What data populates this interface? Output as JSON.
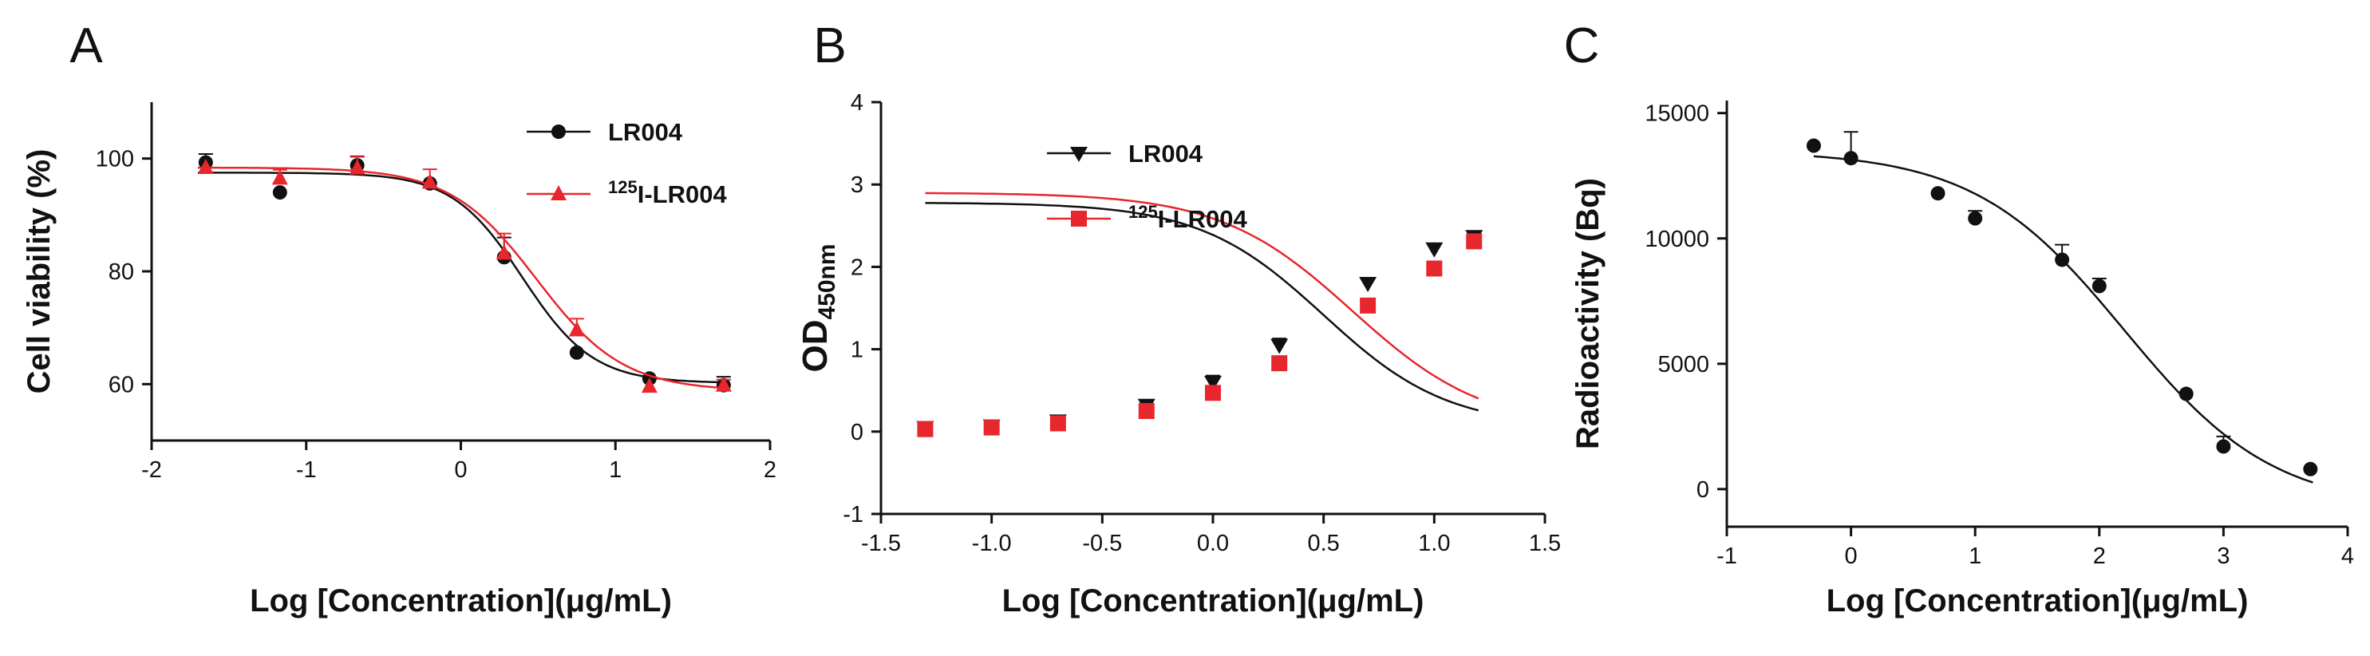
{
  "colors": {
    "black": "#111111",
    "red": "#e8262d"
  },
  "chart_data": [
    {
      "panel": "A",
      "type": "scatter",
      "xlabel": "Log [Concentration](μg/mL)",
      "ylabel": "Cell viability (%)",
      "xlim": [
        -2,
        2
      ],
      "ylim": [
        50,
        110
      ],
      "xticks": [
        -2,
        -1,
        0,
        1,
        2
      ],
      "xtick_labels": [
        "-2",
        "-1",
        "0",
        "1",
        "2"
      ],
      "yticks": [
        60,
        80,
        100
      ],
      "ytick_labels": [
        "60",
        "80",
        "100"
      ],
      "legend": "top-right",
      "series": [
        {
          "name": "LR004",
          "name_sup": "",
          "marker": "circle",
          "color": "#111111",
          "x": [
            -1.65,
            -1.17,
            -0.67,
            -0.2,
            0.28,
            0.75,
            1.22,
            1.7
          ],
          "y": [
            99.3,
            94.0,
            98.8,
            95.6,
            82.5,
            65.6,
            61.0,
            59.8
          ],
          "err": [
            1.5,
            0,
            1.6,
            0,
            3.5,
            0,
            0,
            1.5
          ],
          "fit": {
            "bottom": 60.2,
            "top": 97.5,
            "logec50": 0.4,
            "hill": 1.9
          }
        },
        {
          "name": "I-LR004",
          "name_sup": "125",
          "marker": "triangle",
          "color": "#e8262d",
          "x": [
            -1.65,
            -1.17,
            -0.67,
            -0.2,
            0.28,
            0.75,
            1.22,
            1.7
          ],
          "y": [
            98.4,
            96.5,
            98.3,
            95.8,
            83.2,
            69.6,
            59.6,
            59.8
          ],
          "err": [
            0,
            1.5,
            2.0,
            2.3,
            3.5,
            2.0,
            0,
            1.0
          ],
          "fit": {
            "bottom": 58.8,
            "top": 98.4,
            "logec50": 0.49,
            "hill": 1.55
          }
        }
      ]
    },
    {
      "panel": "B",
      "type": "scatter",
      "xlabel": "Log [Concentration](μg/mL)",
      "ylabel": "OD",
      "ylabel_sub": "450nm",
      "xlim": [
        -1.5,
        1.5
      ],
      "ylim": [
        -1,
        4
      ],
      "xticks": [
        -1.5,
        -1.0,
        -0.5,
        0.0,
        0.5,
        1.0,
        1.5
      ],
      "xtick_labels": [
        "-1.5",
        "-1.0",
        "-0.5",
        "0.0",
        "0.5",
        "1.0",
        "1.5"
      ],
      "yticks": [
        -1,
        0,
        1,
        2,
        3,
        4
      ],
      "ytick_labels": [
        "-1",
        "0",
        "1",
        "2",
        "3",
        "4"
      ],
      "legend": "top-left",
      "series": [
        {
          "name": "LR004",
          "name_sup": "",
          "marker": "triangle-down",
          "color": "#111111",
          "x": [
            -1.3,
            -1.0,
            -0.7,
            -0.3,
            0.0,
            0.3,
            0.7,
            1.0,
            1.18
          ],
          "y": [
            0.05,
            0.07,
            0.13,
            0.32,
            0.6,
            1.05,
            1.8,
            2.22,
            2.37
          ],
          "err": [
            0.04,
            0.04,
            0.06,
            0.06,
            0.08,
            0.08,
            0.06,
            0.06,
            0.06
          ],
          "fit": {
            "bottom": 0.05,
            "top": 2.78,
            "logec50": 0.5,
            "hill": 1.55
          }
        },
        {
          "name": "I-LR004",
          "name_sup": "125",
          "marker": "square",
          "color": "#e8262d",
          "x": [
            -1.3,
            -1.0,
            -0.7,
            -0.3,
            0.0,
            0.3,
            0.7,
            1.0,
            1.18
          ],
          "y": [
            0.03,
            0.05,
            0.1,
            0.25,
            0.47,
            0.83,
            1.53,
            1.98,
            2.31
          ],
          "err": [
            0.04,
            0.04,
            0.05,
            0.05,
            0.07,
            0.07,
            0.06,
            0.06,
            0.06
          ],
          "fit": {
            "bottom": 0.03,
            "top": 2.9,
            "logec50": 0.63,
            "hill": 1.45
          }
        }
      ]
    },
    {
      "panel": "C",
      "type": "scatter",
      "xlabel": "Log [Concentration](μg/mL)",
      "ylabel": "Radioactivity (Bq)",
      "xlim": [
        -1,
        4
      ],
      "ylim": [
        -1500,
        15500
      ],
      "xticks": [
        -1,
        0,
        1,
        2,
        3,
        4
      ],
      "xtick_labels": [
        "-1",
        "0",
        "1",
        "2",
        "3",
        "4"
      ],
      "yticks": [
        0,
        5000,
        10000,
        15000
      ],
      "ytick_labels": [
        "0",
        "5000",
        "10000",
        "15000"
      ],
      "legend": "none",
      "series": [
        {
          "name": "",
          "name_sup": "",
          "marker": "circle",
          "color": "#111111",
          "x": [
            -0.3,
            0.0,
            0.7,
            1.0,
            1.7,
            2.0,
            2.7,
            3.0,
            3.7
          ],
          "y": [
            13700,
            13200,
            11800,
            10800,
            9150,
            8100,
            3800,
            1700,
            800
          ],
          "err": [
            0,
            1050,
            0,
            300,
            600,
            300,
            0,
            400,
            0
          ],
          "fit": {
            "bottom": -800,
            "top": 13500,
            "logec50": 2.2,
            "hill": 0.72
          }
        }
      ]
    }
  ]
}
